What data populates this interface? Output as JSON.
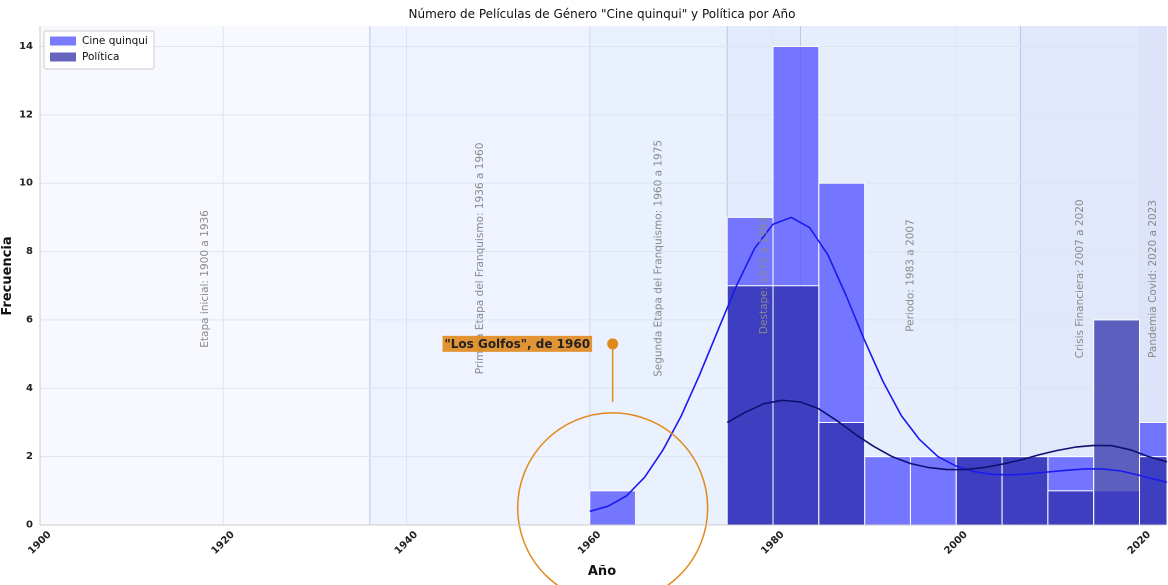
{
  "chart_data": {
    "type": "bar",
    "title": "Número de Películas de Género \"Cine quinqui\" y Política por Año",
    "xlabel": "Año",
    "ylabel": "Frecuencia",
    "xlim": [
      1900,
      2023
    ],
    "ylim": [
      0,
      14.6
    ],
    "xticks": [
      1900,
      1920,
      1940,
      1960,
      1980,
      2000,
      2020
    ],
    "yticks": [
      0,
      2,
      4,
      6,
      8,
      10,
      12,
      14
    ],
    "grid": true,
    "legend_position": "top-left",
    "bin_edges": [
      1960,
      1965,
      1970,
      1975,
      1980,
      1985,
      1990,
      1995,
      2000,
      2005,
      2010,
      2015,
      2020,
      2023
    ],
    "series": [
      {
        "name": "Cine quinqui",
        "color": "#5555ff",
        "values": [
          1,
          0,
          0,
          9,
          14,
          10,
          2,
          2,
          2,
          2,
          2,
          1,
          3
        ],
        "kde_x": [
          1960,
          1962,
          1964,
          1966,
          1968,
          1970,
          1972,
          1974,
          1976,
          1978,
          1980,
          1982,
          1984,
          1986,
          1988,
          1990,
          1992,
          1994,
          1996,
          1998,
          2000,
          2002,
          2004,
          2006,
          2008,
          2010,
          2012,
          2014,
          2016,
          2018,
          2020,
          2023
        ],
        "kde_y": [
          0.4,
          0.55,
          0.85,
          1.4,
          2.2,
          3.2,
          4.4,
          5.7,
          7.0,
          8.1,
          8.8,
          9.0,
          8.7,
          7.9,
          6.7,
          5.4,
          4.2,
          3.2,
          2.5,
          2.0,
          1.72,
          1.56,
          1.48,
          1.47,
          1.5,
          1.55,
          1.6,
          1.64,
          1.64,
          1.58,
          1.45,
          1.25
        ]
      },
      {
        "name": "Política",
        "color": "#2a2aa8",
        "values": [
          0,
          0,
          0,
          7,
          7,
          3,
          0,
          0,
          2,
          2,
          1,
          6,
          2
        ],
        "kde_x": [
          1975,
          1977,
          1979,
          1981,
          1983,
          1985,
          1987,
          1989,
          1991,
          1993,
          1995,
          1997,
          1999,
          2001,
          2003,
          2005,
          2007,
          2009,
          2011,
          2013,
          2015,
          2017,
          2019,
          2021,
          2023
        ],
        "kde_y": [
          3.0,
          3.3,
          3.55,
          3.65,
          3.6,
          3.4,
          3.05,
          2.65,
          2.3,
          2.0,
          1.8,
          1.68,
          1.62,
          1.62,
          1.68,
          1.78,
          1.9,
          2.05,
          2.18,
          2.28,
          2.33,
          2.32,
          2.2,
          2.0,
          1.85
        ]
      }
    ],
    "periods": [
      {
        "label": "Etapa inicial: 1900 a 1936",
        "start": 1900,
        "end": 1936,
        "color": "#f7f9ff",
        "label_x": 1918,
        "label_y": 7.2
      },
      {
        "label": "Primera Etapa del Franquismo: 1936 a 1960",
        "start": 1936,
        "end": 1960,
        "color": "#eef3ff",
        "label_x": 1948,
        "label_y": 7.8
      },
      {
        "label": "Segunda Etapa del Franquismo: 1960 a 1975",
        "start": 1960,
        "end": 1975,
        "color": "#e9f0fe",
        "label_x": 1967.5,
        "label_y": 7.8
      },
      {
        "label": "Destape: 1975 a 1983",
        "start": 1975,
        "end": 1983,
        "color": "#e1ebfd",
        "label_x": 1979,
        "label_y": 7.3
      },
      {
        "label": "Periodo: 1983 a 2007",
        "start": 1983,
        "end": 2007,
        "color": "#e6eefd",
        "label_x": 1995,
        "label_y": 7.3
      },
      {
        "label": "Crisis Financiera: 2007 a 2020",
        "start": 2007,
        "end": 2020,
        "color": "#e1e8fb",
        "label_x": 2013.5,
        "label_y": 7.2
      },
      {
        "label": "Pandemia Covid: 2020 a 2023",
        "start": 2020,
        "end": 2023,
        "color": "#dde3f8",
        "label_x": 2021.5,
        "label_y": 7.2
      }
    ],
    "annotation": {
      "text": "\"Los Golfos\", de 1960",
      "x": 1962.5,
      "y": 0.5,
      "text_x": 1962,
      "text_y": 5.3,
      "color": "#e08a1e"
    }
  }
}
